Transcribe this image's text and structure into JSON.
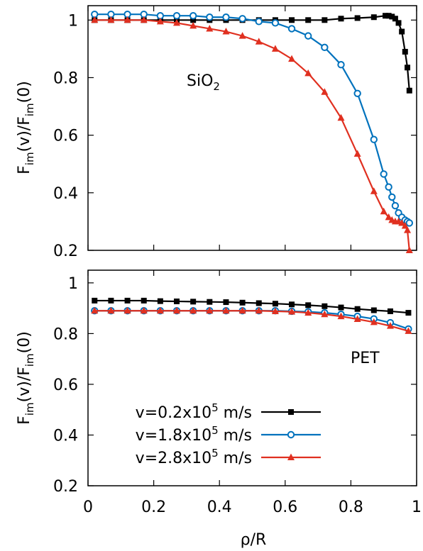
{
  "chart_data": [
    {
      "type": "line",
      "annotation_main": "SiO",
      "annotation_sub": "2",
      "ylabel_F": "F",
      "ylabel_sub1": "im",
      "ylabel_mid": "(v)/F",
      "ylabel_sub2": "im",
      "ylabel_end": "(0)",
      "xlim": [
        0,
        1
      ],
      "ylim": [
        0.2,
        1.05
      ],
      "yticks": [
        "0.2",
        "0.4",
        "0.6",
        "0.8",
        "1"
      ],
      "ytick_values": [
        0.2,
        0.4,
        0.6,
        0.8,
        1.0
      ],
      "series": [
        {
          "color": "#000000",
          "marker": "square",
          "x": [
            0.02,
            0.07,
            0.12,
            0.17,
            0.22,
            0.27,
            0.32,
            0.37,
            0.42,
            0.47,
            0.52,
            0.57,
            0.62,
            0.67,
            0.72,
            0.77,
            0.82,
            0.87,
            0.905,
            0.915,
            0.925,
            0.935,
            0.945,
            0.955,
            0.965,
            0.972,
            0.978
          ],
          "y": [
            1.0,
            1.0,
            1.0,
            1.0,
            1.0,
            1.0,
            1.0,
            1.0,
            1.0,
            1.0,
            1.0,
            1.0,
            1.0,
            1.0,
            1.0,
            1.005,
            1.007,
            1.01,
            1.015,
            1.015,
            1.012,
            1.005,
            0.99,
            0.96,
            0.89,
            0.835,
            0.755
          ]
        },
        {
          "color": "#0072bd",
          "marker": "circle",
          "x": [
            0.02,
            0.07,
            0.12,
            0.17,
            0.22,
            0.27,
            0.32,
            0.37,
            0.42,
            0.47,
            0.52,
            0.57,
            0.62,
            0.67,
            0.72,
            0.77,
            0.82,
            0.87,
            0.9,
            0.915,
            0.925,
            0.935,
            0.945,
            0.955,
            0.965,
            0.972,
            0.978
          ],
          "y": [
            1.02,
            1.02,
            1.02,
            1.02,
            1.015,
            1.015,
            1.015,
            1.01,
            1.01,
            1.005,
            0.995,
            0.99,
            0.97,
            0.945,
            0.905,
            0.845,
            0.745,
            0.585,
            0.465,
            0.42,
            0.385,
            0.355,
            0.33,
            0.315,
            0.305,
            0.3,
            0.295
          ]
        },
        {
          "color": "#e03020",
          "marker": "triangle",
          "x": [
            0.02,
            0.07,
            0.12,
            0.17,
            0.22,
            0.27,
            0.32,
            0.37,
            0.42,
            0.47,
            0.52,
            0.57,
            0.62,
            0.67,
            0.72,
            0.77,
            0.82,
            0.87,
            0.9,
            0.915,
            0.925,
            0.935,
            0.945,
            0.955,
            0.965,
            0.972,
            0.978
          ],
          "y": [
            1.0,
            1.0,
            1.0,
            1.0,
            0.995,
            0.99,
            0.98,
            0.97,
            0.96,
            0.945,
            0.925,
            0.9,
            0.865,
            0.815,
            0.75,
            0.66,
            0.535,
            0.405,
            0.335,
            0.315,
            0.305,
            0.3,
            0.3,
            0.295,
            0.285,
            0.27,
            0.2
          ]
        }
      ]
    },
    {
      "type": "line",
      "annotation": "PET",
      "ylabel_F": "F",
      "ylabel_sub1": "im",
      "ylabel_mid": "(v)/F",
      "ylabel_sub2": "im",
      "ylabel_end": "(0)",
      "xlabel": "ρ/R",
      "xlim": [
        0,
        1
      ],
      "ylim": [
        0.2,
        1.05
      ],
      "xticks": [
        "0",
        "0.2",
        "0.4",
        "0.6",
        "0.8",
        "1"
      ],
      "xtick_values": [
        0,
        0.2,
        0.4,
        0.6,
        0.8,
        1.0
      ],
      "yticks": [
        "0.2",
        "0.4",
        "0.6",
        "0.8",
        "1"
      ],
      "ytick_values": [
        0.2,
        0.4,
        0.6,
        0.8,
        1.0
      ],
      "legend_position": "bottom-left",
      "legend": [
        {
          "pre": "v=0.2x10",
          "sup": "5",
          "post": " m/s",
          "color": "#000000",
          "marker": "square"
        },
        {
          "pre": "v=1.8x10",
          "sup": "5",
          "post": " m/s",
          "color": "#0072bd",
          "marker": "circle"
        },
        {
          "pre": "v=2.8x10",
          "sup": "5",
          "post": " m/s",
          "color": "#e03020",
          "marker": "triangle"
        }
      ],
      "series": [
        {
          "color": "#000000",
          "marker": "square",
          "x": [
            0.02,
            0.07,
            0.12,
            0.17,
            0.22,
            0.27,
            0.32,
            0.37,
            0.42,
            0.47,
            0.52,
            0.57,
            0.62,
            0.67,
            0.72,
            0.77,
            0.82,
            0.87,
            0.92,
            0.975
          ],
          "y": [
            0.93,
            0.93,
            0.93,
            0.93,
            0.928,
            0.927,
            0.926,
            0.925,
            0.924,
            0.922,
            0.92,
            0.918,
            0.915,
            0.912,
            0.908,
            0.903,
            0.897,
            0.892,
            0.888,
            0.882
          ]
        },
        {
          "color": "#0072bd",
          "marker": "circle",
          "x": [
            0.02,
            0.07,
            0.12,
            0.17,
            0.22,
            0.27,
            0.32,
            0.37,
            0.42,
            0.47,
            0.52,
            0.57,
            0.62,
            0.67,
            0.72,
            0.77,
            0.82,
            0.87,
            0.92,
            0.975
          ],
          "y": [
            0.89,
            0.89,
            0.89,
            0.89,
            0.89,
            0.89,
            0.89,
            0.89,
            0.89,
            0.89,
            0.89,
            0.89,
            0.888,
            0.886,
            0.882,
            0.876,
            0.868,
            0.858,
            0.843,
            0.818
          ]
        },
        {
          "color": "#e03020",
          "marker": "triangle",
          "x": [
            0.02,
            0.07,
            0.12,
            0.17,
            0.22,
            0.27,
            0.32,
            0.37,
            0.42,
            0.47,
            0.52,
            0.57,
            0.62,
            0.67,
            0.72,
            0.77,
            0.82,
            0.87,
            0.92,
            0.975
          ],
          "y": [
            0.89,
            0.89,
            0.89,
            0.89,
            0.89,
            0.89,
            0.89,
            0.89,
            0.89,
            0.89,
            0.89,
            0.888,
            0.886,
            0.882,
            0.876,
            0.868,
            0.857,
            0.845,
            0.83,
            0.81
          ]
        }
      ]
    }
  ]
}
